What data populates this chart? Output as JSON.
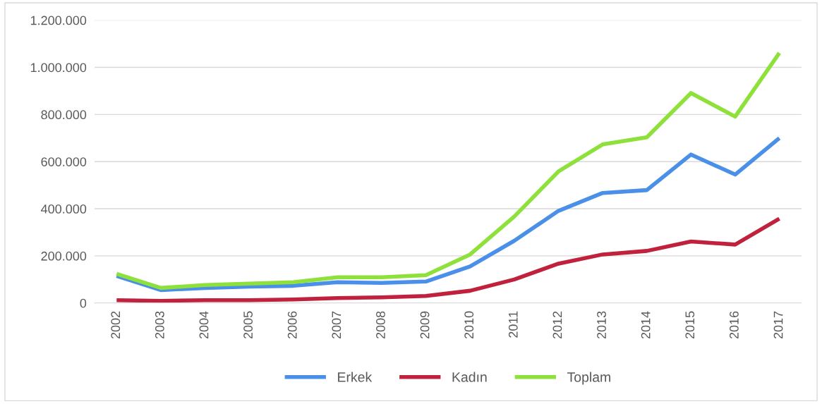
{
  "chart_data": {
    "type": "line",
    "categories": [
      "2002",
      "2003",
      "2004",
      "2005",
      "2006",
      "2007",
      "2008",
      "2009",
      "2010",
      "2011",
      "2012",
      "2013",
      "2014",
      "2015",
      "2016",
      "2017"
    ],
    "series": [
      {
        "name": "Erkek",
        "color": "#4a8fe8",
        "values": [
          115000,
          55000,
          64000,
          70000,
          73000,
          88000,
          85000,
          91000,
          155000,
          264000,
          391000,
          467000,
          479000,
          630000,
          545000,
          700000
        ]
      },
      {
        "name": "Kadın",
        "color": "#c0223e",
        "values": [
          12000,
          9000,
          12000,
          12000,
          15000,
          21000,
          24000,
          30000,
          52000,
          100000,
          167000,
          206000,
          221000,
          261000,
          248000,
          358000
        ]
      },
      {
        "name": "Toplam",
        "color": "#8ee03a",
        "values": [
          124000,
          64000,
          76000,
          82000,
          88000,
          109000,
          109000,
          118000,
          206000,
          367000,
          558000,
          673000,
          703000,
          891000,
          791000,
          1061000
        ]
      }
    ],
    "ylim": [
      0,
      1200000
    ],
    "yticks": [
      0,
      {
        "value": 200000,
        "label": "200.000"
      },
      {
        "value": 400000,
        "label": "400.000"
      },
      {
        "value": 600000,
        "label": "600.000"
      },
      {
        "value": 800000,
        "label": "800.000"
      },
      {
        "value": 1000000,
        "label": "1.000.000"
      },
      {
        "value": 1200000,
        "label": "1.200.000"
      }
    ],
    "grid": "y",
    "legend": "bottom",
    "marker": "none",
    "line_style": "solid"
  }
}
